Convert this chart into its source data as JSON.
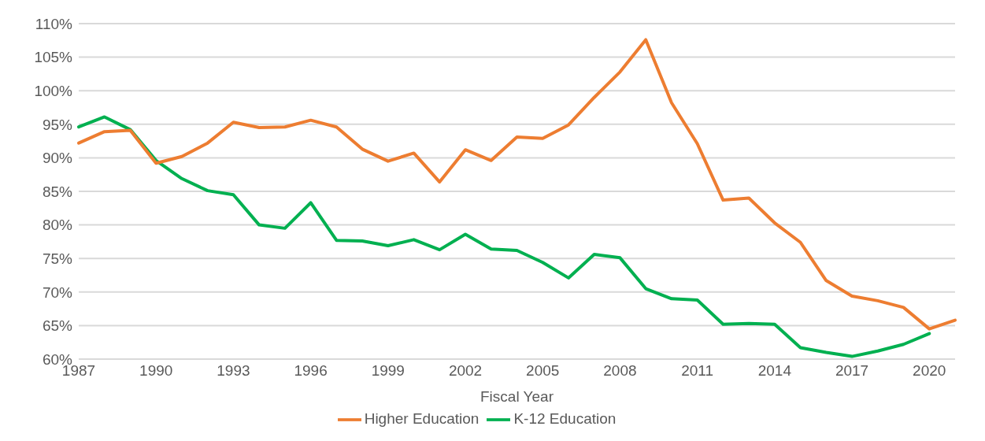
{
  "chart_data": {
    "type": "line",
    "xlabel": "Fiscal Year",
    "categories": [
      "1987",
      null,
      null,
      "1990",
      null,
      null,
      "1993",
      null,
      null,
      "1996",
      null,
      null,
      "1999",
      null,
      null,
      "2002",
      null,
      null,
      "2005",
      null,
      null,
      "2008",
      null,
      null,
      "2011",
      null,
      null,
      "2014",
      null,
      null,
      "2017",
      null,
      null,
      "2020",
      null
    ],
    "series": [
      {
        "name": "K-12 Education",
        "color": "#00b050",
        "values": [
          94.6,
          96.1,
          94.2,
          89.6,
          86.9,
          85.1,
          84.5,
          80.0,
          79.5,
          83.3,
          77.7,
          77.6,
          76.9,
          77.8,
          76.3,
          78.6,
          76.4,
          76.2,
          74.4,
          72.1,
          75.6,
          75.1,
          70.5,
          69.0,
          68.8,
          65.2,
          65.3,
          65.2,
          61.7,
          61.0,
          60.4,
          61.2,
          62.2,
          63.8,
          null
        ]
      },
      {
        "name": "Higher Education",
        "color": "#ed7d31",
        "values": [
          92.2,
          93.9,
          94.1,
          89.2,
          90.2,
          92.2,
          95.3,
          94.5,
          94.6,
          95.6,
          94.6,
          91.3,
          89.5,
          90.7,
          86.4,
          91.2,
          89.6,
          93.1,
          92.9,
          94.9,
          99.0,
          102.8,
          107.6,
          98.2,
          92.1,
          83.7,
          84.0,
          80.3,
          77.4,
          71.7,
          69.4,
          68.7,
          67.7,
          64.5,
          65.8
        ]
      }
    ],
    "ylim": [
      60,
      110
    ],
    "yticks": [
      {
        "value": 60,
        "label": "60%"
      },
      {
        "value": 65,
        "label": "65%"
      },
      {
        "value": 70,
        "label": "70%"
      },
      {
        "value": 75,
        "label": "75%"
      },
      {
        "value": 80,
        "label": "80%"
      },
      {
        "value": 85,
        "label": "85%"
      },
      {
        "value": 90,
        "label": "90%"
      },
      {
        "value": 95,
        "label": "95%"
      },
      {
        "value": 100,
        "label": "100%"
      },
      {
        "value": 105,
        "label": "105%"
      },
      {
        "value": 110,
        "label": "110%"
      }
    ],
    "grid": "y",
    "legend": "bottom",
    "marker": "none",
    "line_style": "solid"
  }
}
